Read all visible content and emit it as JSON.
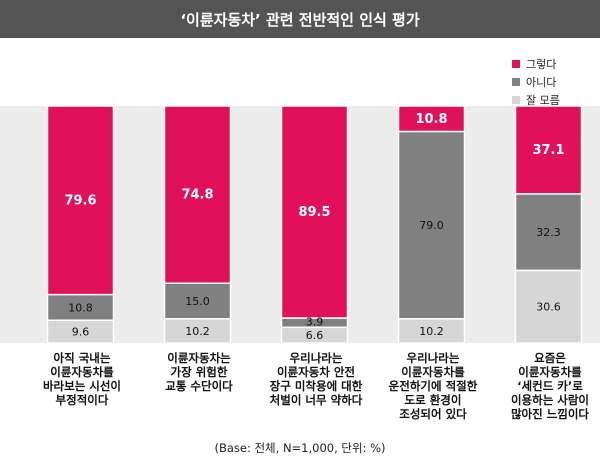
{
  "chart_data": {
    "type": "bar",
    "stacked": true,
    "title": "‘이륜자동차’ 관련 전반적인 인식 평가",
    "categories": [
      "아직 국내는\n이륜자동차를\n바라보는 시선이\n부정적이다",
      "이륜자동차는\n가장 위험한\n교통 수단이다",
      "우리나라는\n이륜자동차 안전\n장구 미착용에 대한\n처벌이 너무 약하다",
      "우리나라는\n이륜자동차를\n운전하기에 적절한\n도로 환경이\n조성되어 있다",
      "요즘은\n이륜자동차를\n‘세컨드 카’로\n이용하는 사람이\n많아진 느낌이다"
    ],
    "series": [
      {
        "name": "그렇다",
        "color": "#e0105a",
        "values": [
          79.6,
          74.8,
          89.5,
          10.8,
          37.1
        ]
      },
      {
        "name": "아니다",
        "color": "#808080",
        "values": [
          10.8,
          15.0,
          3.9,
          79.0,
          32.3
        ]
      },
      {
        "name": "잘 모름",
        "color": "#d6d6d6",
        "values": [
          9.6,
          10.2,
          6.6,
          10.2,
          30.6
        ]
      }
    ],
    "data_labels": [
      [
        "79.6",
        "74.8",
        "89.5",
        "10.8",
        "37.1"
      ],
      [
        "10.8",
        "15.0",
        "3.9",
        "79.0",
        "32.3"
      ],
      [
        "9.6",
        "10.2",
        "6.6",
        "10.2",
        "30.6"
      ]
    ],
    "ylim": [
      0,
      100
    ],
    "legend_position": "top-right",
    "footnote": "(Base: 전체, N=1,000, 단위: %)"
  }
}
